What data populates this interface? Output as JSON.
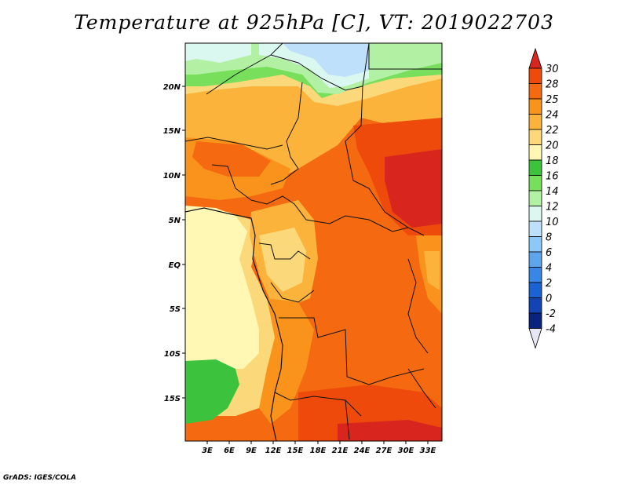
{
  "title": "Temperature at 925hPa [C], VT: 2019022703",
  "credit": "GrADS: IGES/COLA",
  "map": {
    "lat_labels": [
      "20N",
      "15N",
      "10N",
      "5N",
      "EQ",
      "5S",
      "10S",
      "15S"
    ],
    "lon_labels": [
      "3E",
      "6E",
      "9E",
      "12E",
      "15E",
      "18E",
      "21E",
      "24E",
      "27E",
      "30E",
      "33E"
    ]
  },
  "colorbar": {
    "levels": [
      "30",
      "28",
      "25",
      "24",
      "22",
      "20",
      "18",
      "16",
      "14",
      "12",
      "10",
      "8",
      "6",
      "4",
      "2",
      "0",
      "-2",
      "-4"
    ],
    "colors": [
      "#d8261e",
      "#ed4a0c",
      "#f56a10",
      "#f9931c",
      "#fbb33c",
      "#fbd87a",
      "#fff7b3",
      "#3cc23c",
      "#77df5c",
      "#b2f0a4",
      "#daf7f0",
      "#bfe0fb",
      "#8ec8f6",
      "#5ea5ec",
      "#3a86e6",
      "#1c62d4",
      "#1444b4",
      "#0a237c",
      "#e6e6f5"
    ]
  }
}
